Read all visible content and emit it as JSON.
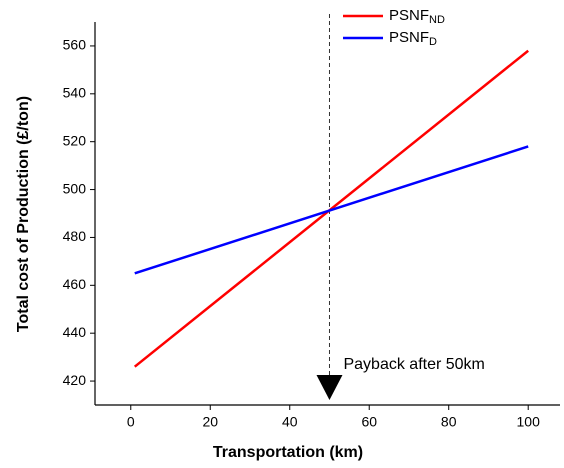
{
  "chart_data": {
    "type": "line",
    "x_label": "Transportation (km)",
    "y_label": "Total cost of Production (£/ton)",
    "series": [
      {
        "name": "PSNF",
        "name_sub": "ND",
        "color": "#ff0000",
        "x": [
          1,
          100
        ],
        "values": [
          426,
          558
        ]
      },
      {
        "name": "PSNF",
        "name_sub": "D",
        "color": "#0000ff",
        "x": [
          1,
          100
        ],
        "values": [
          465,
          518
        ]
      }
    ],
    "xlim": [
      -9,
      108
    ],
    "xticks": [
      0,
      20,
      40,
      60,
      80,
      100
    ],
    "ylim": [
      410,
      570
    ],
    "yticks": [
      420,
      440,
      460,
      480,
      500,
      520,
      540,
      560
    ],
    "vline": 50,
    "annotation": "Payback after 50km"
  }
}
